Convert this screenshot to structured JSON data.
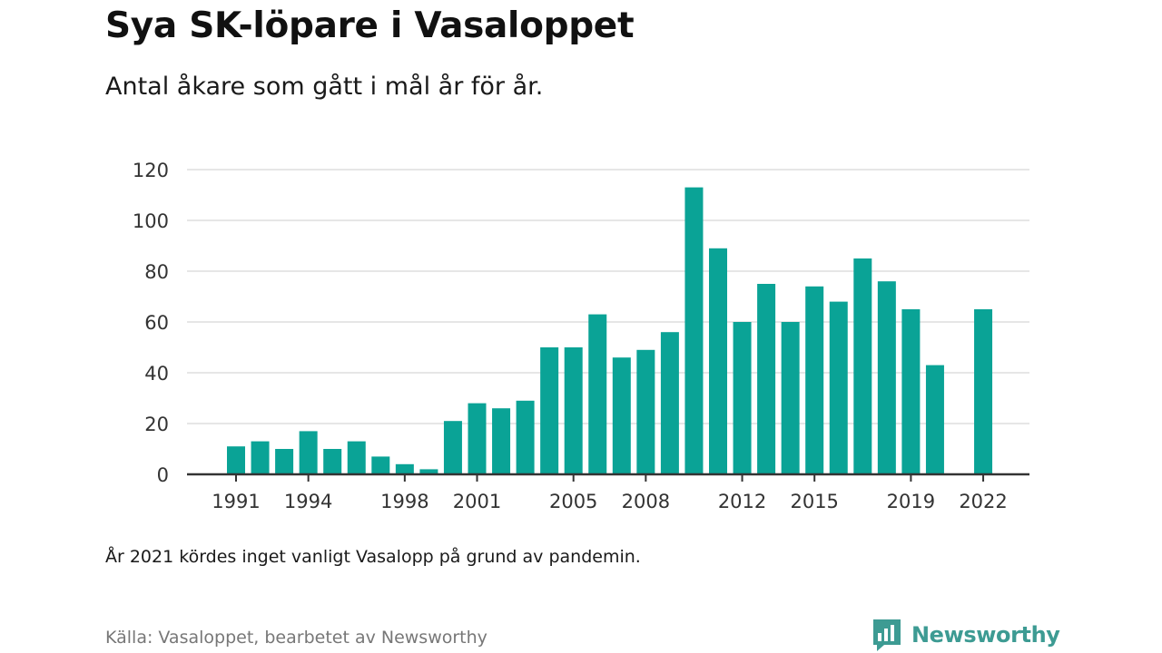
{
  "header": {
    "title": "Sya SK-löpare i Vasaloppet",
    "subtitle": "Antal åkare som gått i mål år för år."
  },
  "footer": {
    "note": "År 2021 kördes inget vanligt Vasalopp på grund av pandemin.",
    "source": "Källa: Vasaloppet, bearbetet av Newsworthy",
    "brand": "Newsworthy",
    "brand_icon": "newsworthy-logo-icon"
  },
  "colors": {
    "bar": "#0aa396",
    "grid": "#dddddd",
    "axis": "#333333",
    "brand": "#3d9b93"
  },
  "chart_data": {
    "type": "bar",
    "title": "Sya SK-löpare i Vasaloppet",
    "subtitle": "Antal åkare som gått i mål år för år.",
    "xlabel": "",
    "ylabel": "",
    "ylim": [
      0,
      120
    ],
    "yticks": [
      "0",
      "20",
      "40",
      "60",
      "80",
      "100",
      "120"
    ],
    "xticks": [
      "1991",
      "1994",
      "1998",
      "2001",
      "2005",
      "2008",
      "2012",
      "2015",
      "2019",
      "2022"
    ],
    "grid": true,
    "categories": [
      1991,
      1992,
      1993,
      1994,
      1995,
      1996,
      1997,
      1998,
      1999,
      2000,
      2001,
      2002,
      2003,
      2004,
      2005,
      2006,
      2007,
      2008,
      2009,
      2010,
      2011,
      2012,
      2013,
      2014,
      2015,
      2016,
      2017,
      2018,
      2019,
      2020,
      2021,
      2022
    ],
    "values": [
      11,
      13,
      10,
      17,
      10,
      13,
      7,
      4,
      2,
      21,
      28,
      26,
      29,
      50,
      50,
      63,
      46,
      49,
      56,
      113,
      89,
      60,
      75,
      60,
      74,
      68,
      85,
      76,
      65,
      43,
      null,
      65
    ]
  }
}
